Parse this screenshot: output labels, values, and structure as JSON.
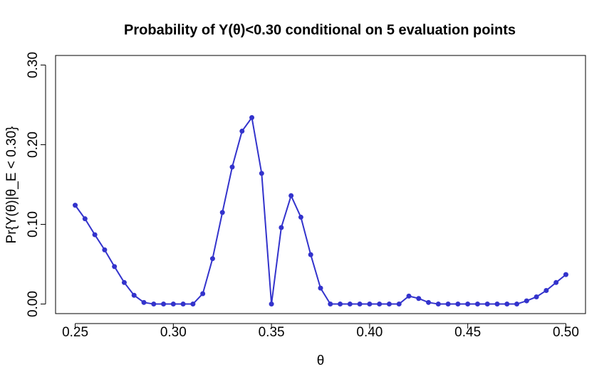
{
  "chart_data": {
    "type": "line",
    "title": "Probability of Y(θ)<0.30 conditional on 5 evaluation points",
    "x_label": "θ",
    "y_label": "Pr{Y(θ)|θ_E < 0.30}",
    "x": [
      0.25,
      0.255,
      0.26,
      0.265,
      0.27,
      0.275,
      0.28,
      0.285,
      0.29,
      0.295,
      0.3,
      0.305,
      0.31,
      0.315,
      0.32,
      0.325,
      0.33,
      0.335,
      0.34,
      0.345,
      0.35,
      0.355,
      0.36,
      0.365,
      0.37,
      0.375,
      0.38,
      0.385,
      0.39,
      0.395,
      0.4,
      0.405,
      0.41,
      0.415,
      0.42,
      0.425,
      0.43,
      0.435,
      0.44,
      0.445,
      0.45,
      0.455,
      0.46,
      0.465,
      0.47,
      0.475,
      0.48,
      0.485,
      0.49,
      0.495,
      0.5
    ],
    "values": [
      0.124,
      0.107,
      0.087,
      0.068,
      0.047,
      0.027,
      0.011,
      0.002,
      0,
      0,
      0,
      0,
      0,
      0.013,
      0.057,
      0.115,
      0.172,
      0.217,
      0.234,
      0.164,
      0,
      0.096,
      0.136,
      0.109,
      0.062,
      0.02,
      0,
      0,
      0,
      0,
      0,
      0,
      0,
      0,
      0.01,
      0.007,
      0.002,
      0,
      0,
      0,
      0,
      0,
      0,
      0,
      0,
      0,
      0.004,
      0.009,
      0.017,
      0.027,
      0.037
    ],
    "color": "#3333cc",
    "xlim": [
      0.24,
      0.51
    ],
    "ylim": [
      -0.012,
      0.312
    ],
    "xticks": [
      0.25,
      {
        "value": 0.3,
        "label": "0.30"
      },
      0.35,
      {
        "value": 0.4,
        "label": "0.40"
      },
      0.45,
      {
        "value": 0.5,
        "label": "0.50"
      }
    ],
    "yticks": [
      {
        "value": 0,
        "label": "0.00"
      },
      {
        "value": 0.1,
        "label": "0.10"
      },
      {
        "value": 0.2,
        "label": "0.20"
      },
      {
        "value": 0.3,
        "label": "0.30"
      }
    ]
  }
}
